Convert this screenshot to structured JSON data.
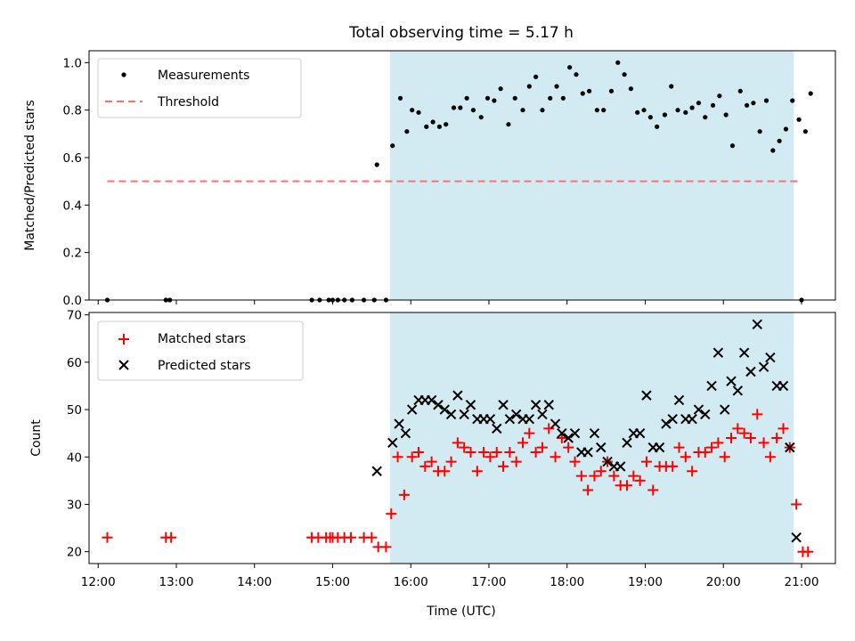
{
  "chart_data": [
    {
      "type": "scatter",
      "title": "Total observing time = 5.17 h",
      "xlabel": "",
      "ylabel": "Matched/Predicted stars",
      "xlim": [
        "11:53",
        "21:26"
      ],
      "ylim": [
        0,
        1.05
      ],
      "yticks": [
        "0.0",
        "0.2",
        "0.4",
        "0.6",
        "0.8",
        "1.0"
      ],
      "grid": false,
      "legend": "upper left",
      "shaded_span": {
        "start": "15:44",
        "end": "20:54",
        "color": "#add8e6"
      },
      "threshold": {
        "name": "Threshold",
        "value": 0.5,
        "x_start": "12:07",
        "x_end": "20:57",
        "color": "#ff7070"
      },
      "series": [
        {
          "name": "Measurements",
          "color": "#000000",
          "points": [
            [
              "12:07",
              0
            ],
            [
              "12:52",
              0
            ],
            [
              "12:55",
              0
            ],
            [
              "14:44",
              0
            ],
            [
              "14:50",
              0
            ],
            [
              "14:57",
              0
            ],
            [
              "15:00",
              0
            ],
            [
              "15:04",
              0
            ],
            [
              "15:09",
              0
            ],
            [
              "15:15",
              0
            ],
            [
              "15:24",
              0
            ],
            [
              "15:32",
              0
            ],
            [
              "15:41",
              0
            ],
            [
              "15:34",
              0.57
            ],
            [
              "15:46",
              0.65
            ],
            [
              "15:52",
              0.85
            ],
            [
              "15:57",
              0.71
            ],
            [
              "16:01",
              0.8
            ],
            [
              "16:06",
              0.79
            ],
            [
              "16:12",
              0.73
            ],
            [
              "16:17",
              0.75
            ],
            [
              "16:22",
              0.73
            ],
            [
              "16:27",
              0.74
            ],
            [
              "16:33",
              0.81
            ],
            [
              "16:38",
              0.81
            ],
            [
              "16:43",
              0.85
            ],
            [
              "16:48",
              0.8
            ],
            [
              "16:54",
              0.77
            ],
            [
              "16:59",
              0.85
            ],
            [
              "17:04",
              0.84
            ],
            [
              "17:09",
              0.89
            ],
            [
              "17:15",
              0.74
            ],
            [
              "17:20",
              0.85
            ],
            [
              "17:26",
              0.8
            ],
            [
              "17:31",
              0.9
            ],
            [
              "17:36",
              0.94
            ],
            [
              "17:41",
              0.8
            ],
            [
              "17:47",
              0.85
            ],
            [
              "17:52",
              0.9
            ],
            [
              "17:57",
              0.85
            ],
            [
              "18:02",
              0.98
            ],
            [
              "18:07",
              0.95
            ],
            [
              "18:12",
              0.87
            ],
            [
              "18:17",
              0.88
            ],
            [
              "18:23",
              0.8
            ],
            [
              "18:28",
              0.8
            ],
            [
              "18:34",
              0.88
            ],
            [
              "18:39",
              1.0
            ],
            [
              "18:44",
              0.95
            ],
            [
              "18:49",
              0.89
            ],
            [
              "18:54",
              0.79
            ],
            [
              "18:59",
              0.8
            ],
            [
              "19:04",
              0.77
            ],
            [
              "19:09",
              0.73
            ],
            [
              "19:15",
              0.78
            ],
            [
              "19:20",
              0.9
            ],
            [
              "19:25",
              0.8
            ],
            [
              "19:31",
              0.79
            ],
            [
              "19:36",
              0.81
            ],
            [
              "19:41",
              0.83
            ],
            [
              "19:46",
              0.77
            ],
            [
              "19:52",
              0.82
            ],
            [
              "19:57",
              0.86
            ],
            [
              "20:02",
              0.78
            ],
            [
              "20:07",
              0.65
            ],
            [
              "20:13",
              0.88
            ],
            [
              "20:18",
              0.82
            ],
            [
              "20:23",
              0.83
            ],
            [
              "20:28",
              0.71
            ],
            [
              "20:33",
              0.84
            ],
            [
              "20:38",
              0.63
            ],
            [
              "20:43",
              0.67
            ],
            [
              "20:48",
              0.72
            ],
            [
              "20:53",
              0.84
            ],
            [
              "20:58",
              0.76
            ],
            [
              "21:03",
              0.71
            ],
            [
              "21:07",
              0.87
            ],
            [
              "21:00",
              0
            ]
          ]
        }
      ]
    },
    {
      "type": "scatter",
      "title": "",
      "xlabel": "Time (UTC)",
      "ylabel": "Count",
      "xlim": [
        "11:53",
        "21:26"
      ],
      "ylim": [
        17.5,
        70.5
      ],
      "xticks": [
        "12:00",
        "13:00",
        "14:00",
        "15:00",
        "16:00",
        "17:00",
        "18:00",
        "19:00",
        "20:00",
        "21:00"
      ],
      "yticks": [
        "20",
        "30",
        "40",
        "50",
        "60",
        "70"
      ],
      "grid": false,
      "legend": "upper left",
      "shaded_span": {
        "start": "15:44",
        "end": "20:54",
        "color": "#add8e6"
      },
      "series": [
        {
          "name": "Matched stars",
          "marker": "plus",
          "color": "#ff0000",
          "points": [
            [
              "12:07",
              23
            ],
            [
              "12:52",
              23
            ],
            [
              "12:56",
              23
            ],
            [
              "14:44",
              23
            ],
            [
              "14:49",
              23
            ],
            [
              "14:55",
              23
            ],
            [
              "14:58",
              23
            ],
            [
              "15:00",
              23
            ],
            [
              "15:04",
              23
            ],
            [
              "15:09",
              23
            ],
            [
              "15:14",
              23
            ],
            [
              "15:24",
              23
            ],
            [
              "15:30",
              23
            ],
            [
              "15:35",
              21
            ],
            [
              "15:41",
              21
            ],
            [
              "15:45",
              28
            ],
            [
              "15:50",
              40
            ],
            [
              "15:55",
              32
            ],
            [
              "16:01",
              40
            ],
            [
              "16:06",
              41
            ],
            [
              "16:11",
              38
            ],
            [
              "16:16",
              39
            ],
            [
              "16:21",
              37
            ],
            [
              "16:26",
              37
            ],
            [
              "16:31",
              39
            ],
            [
              "16:36",
              43
            ],
            [
              "16:41",
              42
            ],
            [
              "16:46",
              41
            ],
            [
              "16:51",
              37
            ],
            [
              "16:56",
              41
            ],
            [
              "17:01",
              40
            ],
            [
              "17:06",
              41
            ],
            [
              "17:11",
              38
            ],
            [
              "17:16",
              41
            ],
            [
              "17:21",
              39
            ],
            [
              "17:26",
              43
            ],
            [
              "17:31",
              45
            ],
            [
              "17:36",
              41
            ],
            [
              "17:41",
              42
            ],
            [
              "17:46",
              46
            ],
            [
              "17:51",
              40
            ],
            [
              "17:56",
              44
            ],
            [
              "18:01",
              42
            ],
            [
              "18:06",
              39
            ],
            [
              "18:11",
              36
            ],
            [
              "18:16",
              33
            ],
            [
              "18:21",
              36
            ],
            [
              "18:26",
              37
            ],
            [
              "18:31",
              39
            ],
            [
              "18:36",
              36
            ],
            [
              "18:41",
              34
            ],
            [
              "18:46",
              34
            ],
            [
              "18:51",
              36
            ],
            [
              "18:56",
              35
            ],
            [
              "19:01",
              39
            ],
            [
              "19:06",
              33
            ],
            [
              "19:11",
              38
            ],
            [
              "19:16",
              38
            ],
            [
              "19:21",
              38
            ],
            [
              "19:26",
              42
            ],
            [
              "19:31",
              40
            ],
            [
              "19:36",
              37
            ],
            [
              "19:41",
              41
            ],
            [
              "19:46",
              41
            ],
            [
              "19:51",
              42
            ],
            [
              "19:56",
              43
            ],
            [
              "20:01",
              40
            ],
            [
              "20:06",
              44
            ],
            [
              "20:11",
              46
            ],
            [
              "20:16",
              45
            ],
            [
              "20:21",
              44
            ],
            [
              "20:26",
              49
            ],
            [
              "20:31",
              43
            ],
            [
              "20:36",
              40
            ],
            [
              "20:41",
              44
            ],
            [
              "20:46",
              46
            ],
            [
              "20:51",
              42
            ],
            [
              "20:56",
              30
            ],
            [
              "21:01",
              20
            ],
            [
              "21:05",
              20
            ]
          ]
        },
        {
          "name": "Predicted stars",
          "marker": "x",
          "color": "#000000",
          "points": [
            [
              "15:34",
              37
            ],
            [
              "15:46",
              43
            ],
            [
              "15:51",
              47
            ],
            [
              "15:56",
              45
            ],
            [
              "16:01",
              50
            ],
            [
              "16:06",
              52
            ],
            [
              "16:11",
              52
            ],
            [
              "16:16",
              52
            ],
            [
              "16:21",
              51
            ],
            [
              "16:26",
              50
            ],
            [
              "16:31",
              49
            ],
            [
              "16:36",
              53
            ],
            [
              "16:41",
              49
            ],
            [
              "16:46",
              51
            ],
            [
              "16:51",
              48
            ],
            [
              "16:56",
              48
            ],
            [
              "17:01",
              48
            ],
            [
              "17:06",
              46
            ],
            [
              "17:11",
              51
            ],
            [
              "17:16",
              48
            ],
            [
              "17:21",
              49
            ],
            [
              "17:26",
              48
            ],
            [
              "17:31",
              48
            ],
            [
              "17:36",
              51
            ],
            [
              "17:41",
              49
            ],
            [
              "17:46",
              51
            ],
            [
              "17:51",
              47
            ],
            [
              "17:56",
              45
            ],
            [
              "18:01",
              44
            ],
            [
              "18:06",
              45
            ],
            [
              "18:11",
              41
            ],
            [
              "18:16",
              41
            ],
            [
              "18:21",
              45
            ],
            [
              "18:26",
              42
            ],
            [
              "18:31",
              39
            ],
            [
              "18:36",
              38
            ],
            [
              "18:41",
              38
            ],
            [
              "18:46",
              43
            ],
            [
              "18:51",
              45
            ],
            [
              "18:56",
              45
            ],
            [
              "19:01",
              53
            ],
            [
              "19:06",
              42
            ],
            [
              "19:11",
              42
            ],
            [
              "19:16",
              47
            ],
            [
              "19:21",
              48
            ],
            [
              "19:26",
              52
            ],
            [
              "19:31",
              48
            ],
            [
              "19:36",
              48
            ],
            [
              "19:41",
              50
            ],
            [
              "19:46",
              49
            ],
            [
              "19:51",
              55
            ],
            [
              "19:56",
              62
            ],
            [
              "20:01",
              50
            ],
            [
              "20:06",
              56
            ],
            [
              "20:11",
              54
            ],
            [
              "20:16",
              62
            ],
            [
              "20:21",
              58
            ],
            [
              "20:26",
              68
            ],
            [
              "20:31",
              59
            ],
            [
              "20:36",
              61
            ],
            [
              "20:41",
              55
            ],
            [
              "20:46",
              55
            ],
            [
              "20:51",
              42
            ],
            [
              "20:56",
              23
            ]
          ]
        }
      ]
    }
  ]
}
